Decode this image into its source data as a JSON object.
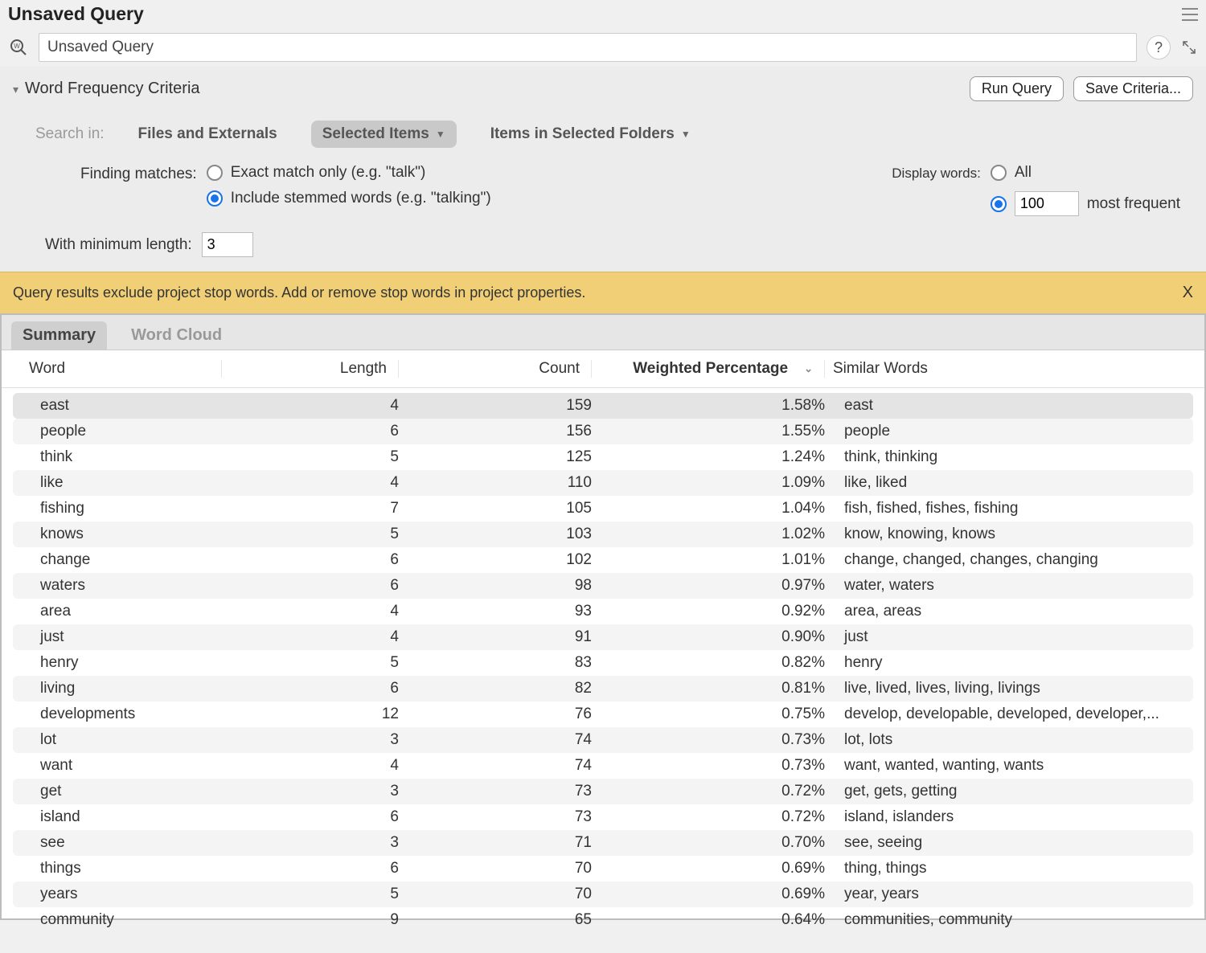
{
  "window": {
    "title": "Unsaved Query"
  },
  "queryBar": {
    "name": "Unsaved Query",
    "helpLabel": "?"
  },
  "criteria": {
    "title": "Word Frequency Criteria",
    "runQueryLabel": "Run Query",
    "saveCriteriaLabel": "Save Criteria...",
    "searchInLabel": "Search in:",
    "searchInOptions": {
      "filesExternals": "Files and Externals",
      "selectedItems": "Selected Items",
      "itemsInFolders": "Items in Selected Folders"
    },
    "findingLabel": "Finding matches:",
    "exactMatchLabel": "Exact match only (e.g. \"talk\")",
    "stemmedLabel": "Include stemmed words (e.g. \"talking\")",
    "displayWordsLabel": "Display words:",
    "allLabel": "All",
    "mostFrequentLabel": "most frequent",
    "mostFrequentValue": "100",
    "minLengthLabel": "With minimum length:",
    "minLengthValue": "3"
  },
  "notice": {
    "text": "Query results exclude project stop words. Add or remove stop words in project properties.",
    "close": "X"
  },
  "tabs": {
    "summary": "Summary",
    "wordCloud": "Word Cloud"
  },
  "table": {
    "columns": {
      "word": "Word",
      "length": "Length",
      "count": "Count",
      "weighted": "Weighted Percentage",
      "similar": "Similar Words"
    },
    "rows": [
      {
        "word": "east",
        "length": 4,
        "count": 159,
        "pct": "1.58%",
        "similar": "east",
        "selected": true
      },
      {
        "word": "people",
        "length": 6,
        "count": 156,
        "pct": "1.55%",
        "similar": "people"
      },
      {
        "word": "think",
        "length": 5,
        "count": 125,
        "pct": "1.24%",
        "similar": "think, thinking"
      },
      {
        "word": "like",
        "length": 4,
        "count": 110,
        "pct": "1.09%",
        "similar": "like, liked"
      },
      {
        "word": "fishing",
        "length": 7,
        "count": 105,
        "pct": "1.04%",
        "similar": "fish, fished, fishes, fishing"
      },
      {
        "word": "knows",
        "length": 5,
        "count": 103,
        "pct": "1.02%",
        "similar": "know, knowing, knows"
      },
      {
        "word": "change",
        "length": 6,
        "count": 102,
        "pct": "1.01%",
        "similar": "change, changed, changes, changing"
      },
      {
        "word": "waters",
        "length": 6,
        "count": 98,
        "pct": "0.97%",
        "similar": "water, waters"
      },
      {
        "word": "area",
        "length": 4,
        "count": 93,
        "pct": "0.92%",
        "similar": "area, areas"
      },
      {
        "word": "just",
        "length": 4,
        "count": 91,
        "pct": "0.90%",
        "similar": "just"
      },
      {
        "word": "henry",
        "length": 5,
        "count": 83,
        "pct": "0.82%",
        "similar": "henry"
      },
      {
        "word": "living",
        "length": 6,
        "count": 82,
        "pct": "0.81%",
        "similar": "live, lived, lives, living, livings"
      },
      {
        "word": "developments",
        "length": 12,
        "count": 76,
        "pct": "0.75%",
        "similar": "develop, developable, developed, developer,..."
      },
      {
        "word": "lot",
        "length": 3,
        "count": 74,
        "pct": "0.73%",
        "similar": "lot, lots"
      },
      {
        "word": "want",
        "length": 4,
        "count": 74,
        "pct": "0.73%",
        "similar": "want, wanted, wanting, wants"
      },
      {
        "word": "get",
        "length": 3,
        "count": 73,
        "pct": "0.72%",
        "similar": "get, gets, getting"
      },
      {
        "word": "island",
        "length": 6,
        "count": 73,
        "pct": "0.72%",
        "similar": "island, islanders"
      },
      {
        "word": "see",
        "length": 3,
        "count": 71,
        "pct": "0.70%",
        "similar": "see, seeing"
      },
      {
        "word": "things",
        "length": 6,
        "count": 70,
        "pct": "0.69%",
        "similar": "thing, things"
      },
      {
        "word": "years",
        "length": 5,
        "count": 70,
        "pct": "0.69%",
        "similar": "year, years"
      },
      {
        "word": "community",
        "length": 9,
        "count": 65,
        "pct": "0.64%",
        "similar": "communities, community"
      }
    ]
  },
  "colors": {
    "noticeBg": "#f0cf77",
    "accentBlue": "#1a73e8",
    "panelBg": "#ececec",
    "selectedRow": "#e4e4e4",
    "altRow": "#f4f4f4"
  }
}
